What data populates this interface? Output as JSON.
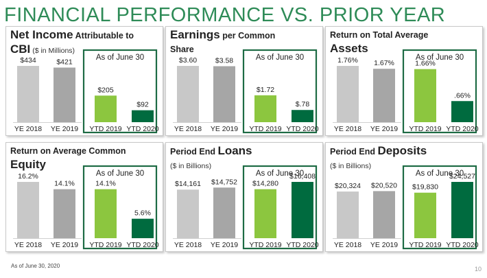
{
  "title": "FINANCIAL PERFORMANCE VS. PRIOR YEAR",
  "footnote": "As of June 30, 2020",
  "page_number": "10",
  "colors": {
    "title": "#2e8b57",
    "ye2018": "#c8c8c8",
    "ye2019": "#a6a6a6",
    "ytd2019": "#8cc63f",
    "ytd2020": "#006b3f",
    "highlight_border": "#1d6b44"
  },
  "chart_data": [
    {
      "type": "bar",
      "title_parts": [
        {
          "text": "Net Income",
          "size": "big"
        },
        {
          "text": " Attributable to",
          "size": "small"
        },
        {
          "text": "CBI",
          "size": "big",
          "newline": true
        },
        {
          "text": " ($ in Millions)",
          "size": "small",
          "light": true
        }
      ],
      "box_label": "As of June 30",
      "categories": [
        "YE 2018",
        "YE 2019",
        "YTD 2019",
        "YTD 2020"
      ],
      "values": [
        434,
        421,
        205,
        92
      ],
      "labels": [
        "$434",
        "$421",
        "$205",
        "$92"
      ]
    },
    {
      "type": "bar",
      "title_parts": [
        {
          "text": "Earnings",
          "size": "big"
        },
        {
          "text": " per Common",
          "size": "small"
        },
        {
          "text": "Share",
          "size": "small",
          "newline": true
        }
      ],
      "box_label": "As of June 30",
      "categories": [
        "YE 2018",
        "YE 2019",
        "YTD 2019",
        "YTD 2020"
      ],
      "values": [
        3.6,
        3.58,
        1.72,
        0.78
      ],
      "labels": [
        "$3.60",
        "$3.58",
        "$1.72",
        "$.78"
      ]
    },
    {
      "type": "bar",
      "title_parts": [
        {
          "text": "Return on Total Average",
          "size": "small"
        },
        {
          "text": "Assets",
          "size": "big",
          "newline": true
        }
      ],
      "box_label": "As of June 30",
      "categories": [
        "YE 2018",
        "YE 2019",
        "YTD 2019",
        "YTD 2020"
      ],
      "values": [
        1.76,
        1.67,
        1.66,
        0.66
      ],
      "labels": [
        "1.76%",
        "1.67%",
        "1.66%",
        ".66%"
      ]
    },
    {
      "type": "bar",
      "title_parts": [
        {
          "text": "Return on Average Common",
          "size": "small"
        },
        {
          "text": "Equity",
          "size": "big",
          "newline": true
        }
      ],
      "box_label": "As of June 30",
      "categories": [
        "YE 2018",
        "YE 2019",
        "YTD 2019",
        "YTD 2020"
      ],
      "values": [
        16.2,
        14.1,
        14.1,
        5.6
      ],
      "labels": [
        "16.2%",
        "14.1%",
        "14.1%",
        "5.6%"
      ]
    },
    {
      "type": "bar",
      "title_parts": [
        {
          "text": "Period End ",
          "size": "small"
        },
        {
          "text": "Loans",
          "size": "big"
        },
        {
          "text": "($ in Billions)",
          "size": "small",
          "light": true,
          "newline": true
        }
      ],
      "box_label": "As of June 30",
      "categories": [
        "YE 2018",
        "YE 2019",
        "YTD 2019",
        "YTD 2020"
      ],
      "values": [
        14161,
        14752,
        14280,
        16408
      ],
      "labels": [
        "$14,161",
        "$14,752",
        "$14,280",
        "$16,408"
      ]
    },
    {
      "type": "bar",
      "title_parts": [
        {
          "text": "Period End ",
          "size": "small"
        },
        {
          "text": "Deposits",
          "size": "big"
        },
        {
          "text": "($ in Billions)",
          "size": "small",
          "light": true,
          "newline": true
        }
      ],
      "box_label": "As of June 30",
      "categories": [
        "YE 2018",
        "YE 2019",
        "YTD 2019",
        "YTD 2020"
      ],
      "values": [
        20324,
        20520,
        19830,
        24527
      ],
      "labels": [
        "$20,324",
        "$20,520",
        "$19,830",
        "$24,527"
      ]
    }
  ]
}
